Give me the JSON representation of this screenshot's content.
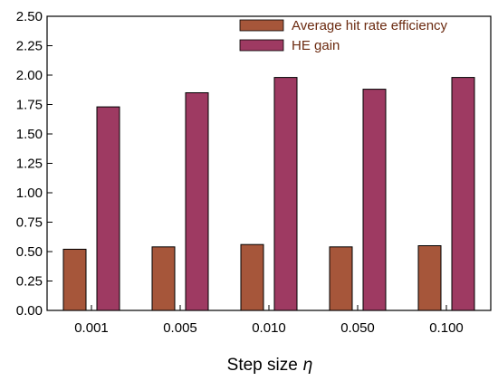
{
  "chart_data": {
    "type": "bar",
    "categories": [
      "0.001",
      "0.005",
      "0.010",
      "0.050",
      "0.100"
    ],
    "series": [
      {
        "name": "Average hit rate efficiency",
        "values": [
          0.52,
          0.54,
          0.56,
          0.54,
          0.55
        ],
        "color": "#a6563a"
      },
      {
        "name": "HE gain",
        "values": [
          1.73,
          1.85,
          1.98,
          1.88,
          1.98
        ],
        "color": "#9e3a62"
      }
    ],
    "y_ticks": [
      "0.00",
      "0.25",
      "0.50",
      "0.75",
      "1.00",
      "1.25",
      "1.50",
      "1.75",
      "2.00",
      "2.25",
      "2.50"
    ],
    "xlabel": "Step size",
    "xlabel_symbol": "η",
    "ylabel": "",
    "ylim": [
      0,
      2.5
    ],
    "grid": false,
    "legend_position": "top-right",
    "legend_text_color": "#6b2a10"
  }
}
